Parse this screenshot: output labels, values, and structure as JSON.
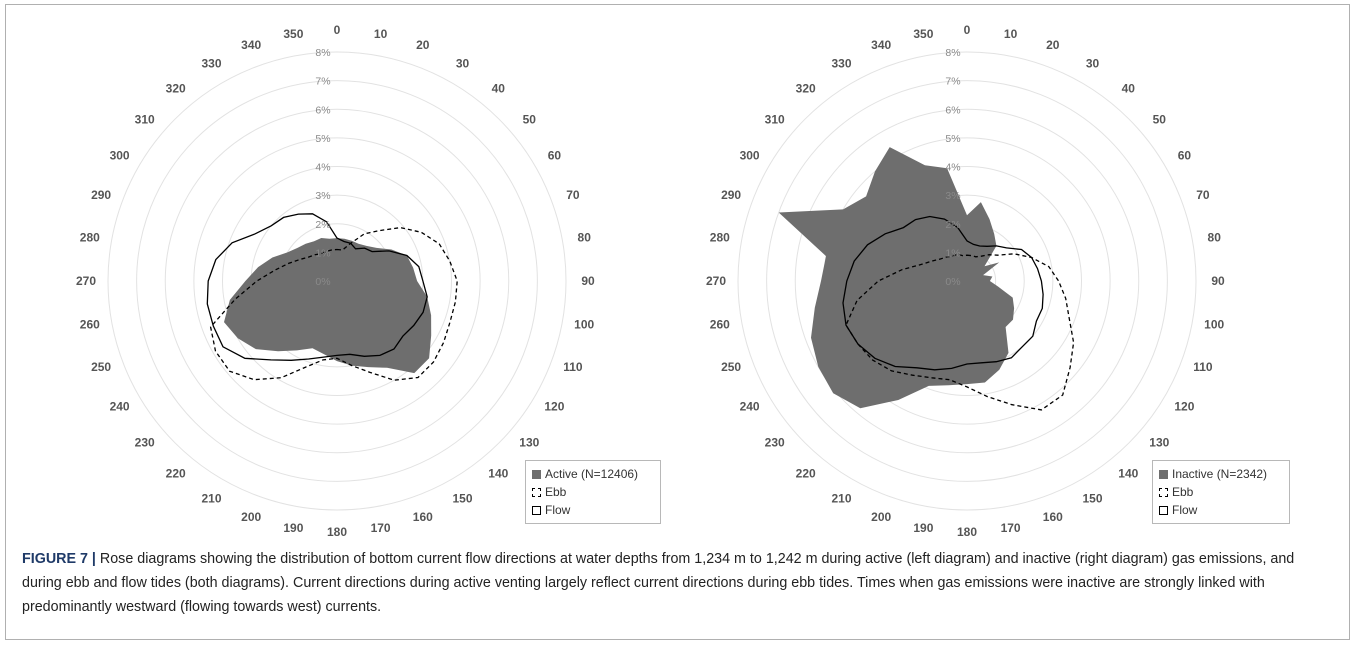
{
  "chart_data": [
    {
      "type": "radar",
      "subtype": "filled radar with line overlays",
      "categories": [
        "0",
        "10",
        "20",
        "30",
        "40",
        "50",
        "60",
        "70",
        "80",
        "90",
        "100",
        "110",
        "120",
        "130",
        "140",
        "150",
        "160",
        "170",
        "180",
        "190",
        "200",
        "210",
        "220",
        "230",
        "240",
        "250",
        "260",
        "270",
        "280",
        "290",
        "300",
        "310",
        "320",
        "330",
        "340",
        "350"
      ],
      "radial_ticks": [
        "0%",
        "1%",
        "2%",
        "3%",
        "4%",
        "5%",
        "6%",
        "7%",
        "8%"
      ],
      "rmax": 8,
      "series": [
        {
          "name": "Active (N=12406)",
          "style": "filled",
          "values": [
            1.5,
            1.5,
            1.5,
            1.5,
            1.6,
            1.8,
            2.2,
            2.6,
            2.7,
            2.8,
            3.2,
            3.5,
            3.8,
            4.2,
            4.2,
            3.5,
            3.2,
            3.0,
            2.8,
            2.6,
            2.5,
            2.8,
            3.2,
            3.7,
            4.0,
            4.2,
            3.8,
            3.2,
            2.8,
            2.4,
            2.0,
            1.8,
            1.7,
            1.6,
            1.6,
            1.5
          ]
        },
        {
          "name": "Ebb",
          "style": "dashed",
          "values": [
            1.1,
            1.1,
            1.4,
            1.9,
            2.3,
            2.9,
            3.4,
            3.8,
            4.0,
            4.2,
            4.2,
            4.2,
            4.3,
            4.4,
            4.4,
            4.0,
            3.4,
            3.0,
            2.7,
            2.8,
            3.2,
            3.9,
            4.5,
            4.9,
            4.9,
            4.7,
            3.6,
            2.8,
            2.2,
            1.8,
            1.5,
            1.3,
            1.2,
            1.1,
            1.1,
            1.1
          ]
        },
        {
          "name": "Flow",
          "style": "solid",
          "values": [
            1.5,
            1.4,
            1.4,
            1.3,
            1.5,
            1.6,
            2.1,
            2.6,
            2.9,
            3.0,
            3.2,
            3.2,
            3.1,
            3.0,
            3.1,
            3.0,
            2.8,
            2.6,
            2.6,
            2.7,
            2.9,
            3.2,
            3.6,
            4.2,
            4.6,
            4.6,
            4.6,
            4.5,
            4.3,
            3.9,
            3.3,
            3.0,
            2.9,
            2.7,
            2.5,
            2.1
          ]
        }
      ],
      "legend": {
        "position": "bottom-right",
        "entries": [
          "Active (N=12406)",
          "Ebb",
          "Flow"
        ]
      }
    },
    {
      "type": "radar",
      "subtype": "filled radar with line overlays",
      "categories": [
        "0",
        "10",
        "20",
        "30",
        "40",
        "50",
        "60",
        "70",
        "80",
        "90",
        "100",
        "110",
        "120",
        "130",
        "140",
        "150",
        "160",
        "170",
        "180",
        "190",
        "200",
        "210",
        "220",
        "230",
        "240",
        "250",
        "260",
        "270",
        "280",
        "290",
        "300",
        "310",
        "320",
        "330",
        "340",
        "350"
      ],
      "radial_ticks": [
        "0%",
        "1%",
        "2%",
        "3%",
        "4%",
        "5%",
        "6%",
        "7%",
        "8%"
      ],
      "rmax": 8,
      "series": [
        {
          "name": "Inactive (N=2342)",
          "style": "filled",
          "values": [
            2.3,
            2.8,
            2.3,
            1.9,
            1.6,
            0.8,
            1.3,
            0.6,
            0.9,
            0.8,
            1.1,
            1.7,
            1.9,
            2.1,
            2.1,
            2.9,
            3.3,
            3.6,
            3.6,
            3.7,
            3.9,
            4.8,
            5.8,
            6.1,
            6.0,
            5.8,
            5.4,
            5.1,
            5.0,
            7.0,
            5.0,
            4.6,
            5.0,
            5.4,
            4.3,
            4.0
          ]
        },
        {
          "name": "Ebb",
          "style": "dashed",
          "values": [
            0.9,
            0.9,
            0.9,
            1.0,
            1.2,
            1.4,
            1.9,
            2.4,
            2.9,
            3.2,
            3.5,
            3.8,
            4.3,
            4.7,
            5.2,
            5.2,
            4.6,
            4.1,
            3.7,
            3.5,
            3.6,
            3.8,
            4.1,
            4.3,
            4.4,
            4.5,
            3.9,
            3.1,
            2.3,
            1.7,
            1.4,
            1.2,
            1.1,
            1.0,
            1.0,
            0.9
          ]
        },
        {
          "name": "Flow",
          "style": "solid",
          "values": [
            1.4,
            1.3,
            1.3,
            1.4,
            1.6,
            1.8,
            2.2,
            2.4,
            2.5,
            2.6,
            2.7,
            2.8,
            2.8,
            3.0,
            3.0,
            3.1,
            3.0,
            2.9,
            2.9,
            3.1,
            3.3,
            3.5,
            3.9,
            4.2,
            4.4,
            4.5,
            4.4,
            4.2,
            4.0,
            3.7,
            3.3,
            2.9,
            2.8,
            2.6,
            2.3,
            1.9
          ]
        }
      ],
      "legend": {
        "position": "bottom-right",
        "entries": [
          "Inactive (N=2342)",
          "Ebb",
          "Flow"
        ]
      }
    }
  ],
  "caption": {
    "label": "FIGURE 7 |",
    "text": " Rose diagrams showing the distribution of bottom current flow directions at water depths from 1,234 m to 1,242 m during active (left diagram) and inactive (right diagram) gas emissions, and during ebb and flow tides (both diagrams). Current directions during active venting largely reflect current directions during ebb tides. Times when gas emissions were inactive are strongly linked with predominantly westward (flowing towards west) currents."
  },
  "colors": {
    "fill": "#6e6e6e",
    "grid": "#e2e2e2",
    "line": "#000000",
    "label": "#555555"
  }
}
